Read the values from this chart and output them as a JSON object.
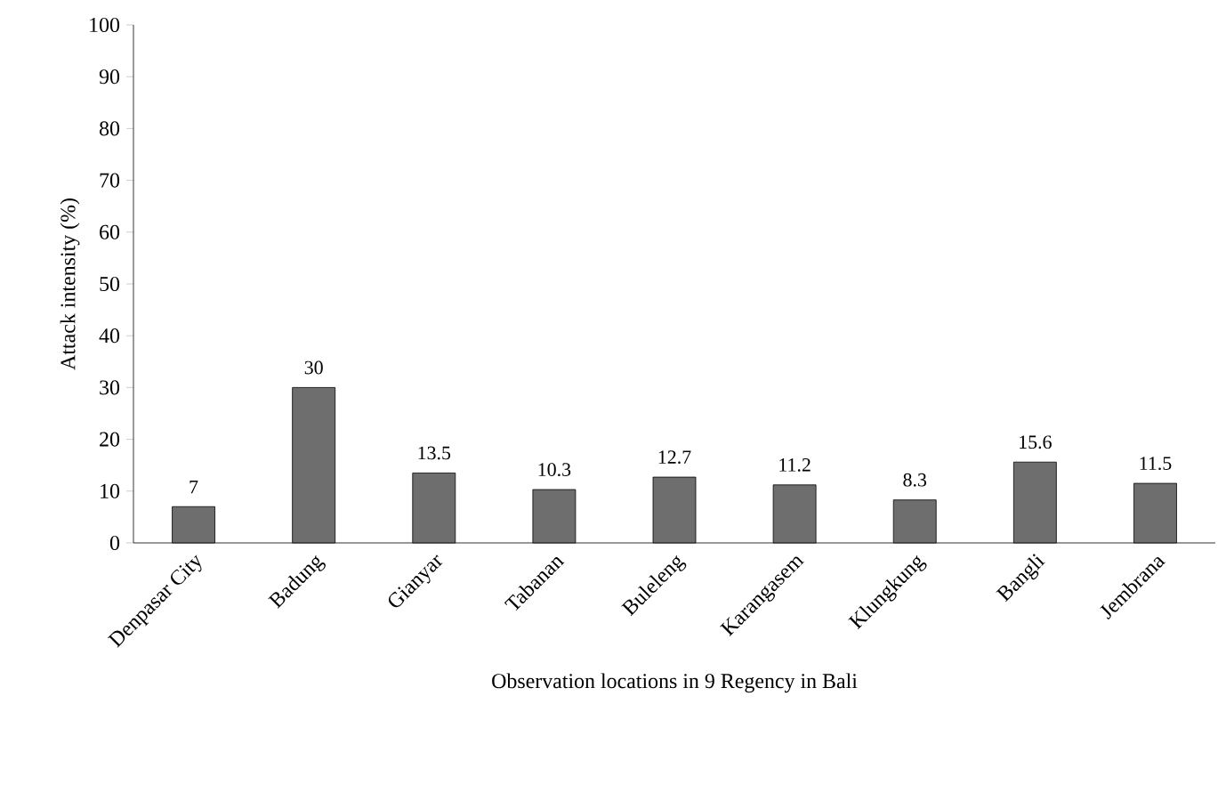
{
  "chart_data": {
    "type": "bar",
    "xlabel": "Observation locations in 9 Regency in Bali",
    "ylabel": "Attack intensity (%)",
    "categories": [
      "Denpasar City",
      "Badung",
      "Gianyar",
      "Tabanan",
      "Buleleng",
      "Karangasem",
      "Klungkung",
      "Bangli",
      "Jembrana"
    ],
    "values": [
      7,
      30,
      13.5,
      10.3,
      12.7,
      11.2,
      8.3,
      15.6,
      11.5
    ],
    "color": "#6e6e6e",
    "ylim": [
      0,
      100
    ],
    "yticks": [
      0,
      10,
      20,
      30,
      40,
      50,
      60,
      70,
      80,
      90,
      100
    ],
    "data_labels": true
  }
}
